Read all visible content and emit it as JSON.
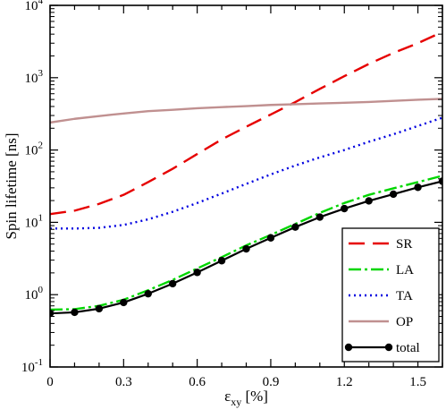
{
  "chart_data": {
    "type": "line",
    "yscale": "log",
    "title": "",
    "xlabel": "ε",
    "xlabel_sub": "xy",
    "xlabel_unit": " [%]",
    "ylabel": "Spin lifetime [ns]",
    "xlim": [
      0,
      1.6
    ],
    "ylim": [
      0.1,
      10000
    ],
    "grid": false,
    "legend_position": "lower-right",
    "x_ticks": [
      {
        "value": 0,
        "label": "0"
      },
      {
        "value": 0.3,
        "label": "0.3"
      },
      {
        "value": 0.6,
        "label": "0.6"
      },
      {
        "value": 0.9,
        "label": "0.9"
      },
      {
        "value": 1.2,
        "label": "1.2"
      },
      {
        "value": 1.5,
        "label": "1.5"
      }
    ],
    "y_ticks": [
      {
        "value": 0.1,
        "base": "10",
        "exp": "-1"
      },
      {
        "value": 1,
        "base": "10",
        "exp": "0"
      },
      {
        "value": 10,
        "base": "10",
        "exp": "1"
      },
      {
        "value": 100,
        "base": "10",
        "exp": "2"
      },
      {
        "value": 1000,
        "base": "10",
        "exp": "3"
      },
      {
        "value": 10000,
        "base": "10",
        "exp": "4"
      }
    ],
    "series": [
      {
        "name": "SR",
        "color": "#e60000",
        "dash": "18,9",
        "markers": false,
        "x": [
          0,
          0.1,
          0.2,
          0.3,
          0.4,
          0.5,
          0.6,
          0.7,
          0.8,
          0.9,
          1.0,
          1.1,
          1.2,
          1.3,
          1.4,
          1.5,
          1.6
        ],
        "y": [
          13,
          14.5,
          18,
          24,
          36,
          55,
          88,
          140,
          210,
          310,
          460,
          700,
          1050,
          1550,
          2200,
          3000,
          4300
        ]
      },
      {
        "name": "LA",
        "color": "#00d600",
        "dash": "14,4,3,4",
        "markers": false,
        "x": [
          0,
          0.1,
          0.2,
          0.3,
          0.4,
          0.5,
          0.6,
          0.7,
          0.8,
          0.9,
          1.0,
          1.1,
          1.2,
          1.3,
          1.4,
          1.5,
          1.6
        ],
        "y": [
          0.62,
          0.63,
          0.7,
          0.85,
          1.15,
          1.6,
          2.3,
          3.3,
          4.8,
          6.7,
          9.5,
          13.5,
          18.5,
          24,
          29.5,
          36,
          44
        ]
      },
      {
        "name": "TA",
        "color": "#0000e0",
        "dash": "2,4",
        "markers": false,
        "x": [
          0,
          0.1,
          0.2,
          0.3,
          0.4,
          0.5,
          0.6,
          0.7,
          0.8,
          0.9,
          1.0,
          1.1,
          1.2,
          1.3,
          1.4,
          1.5,
          1.6
        ],
        "y": [
          8.2,
          8.2,
          8.4,
          9.2,
          11,
          14,
          18.5,
          25,
          34,
          46,
          61,
          79,
          100,
          130,
          165,
          215,
          280
        ]
      },
      {
        "name": "OP",
        "color": "#c09090",
        "dash": "",
        "markers": false,
        "x": [
          0,
          0.1,
          0.2,
          0.3,
          0.4,
          0.5,
          0.6,
          0.7,
          0.8,
          0.9,
          1.0,
          1.1,
          1.2,
          1.3,
          1.4,
          1.5,
          1.6
        ],
        "y": [
          240,
          270,
          295,
          320,
          345,
          360,
          378,
          392,
          405,
          420,
          430,
          440,
          450,
          462,
          478,
          495,
          510
        ]
      },
      {
        "name": "total",
        "color": "#000000",
        "dash": "",
        "markers": true,
        "x": [
          0,
          0.1,
          0.2,
          0.3,
          0.4,
          0.5,
          0.6,
          0.7,
          0.8,
          0.9,
          1.0,
          1.1,
          1.2,
          1.3,
          1.4,
          1.5,
          1.6
        ],
        "y": [
          0.55,
          0.57,
          0.64,
          0.78,
          1.03,
          1.42,
          2.03,
          2.95,
          4.3,
          6.1,
          8.6,
          11.8,
          15.5,
          19.8,
          24.5,
          30.5,
          37
        ]
      }
    ]
  }
}
